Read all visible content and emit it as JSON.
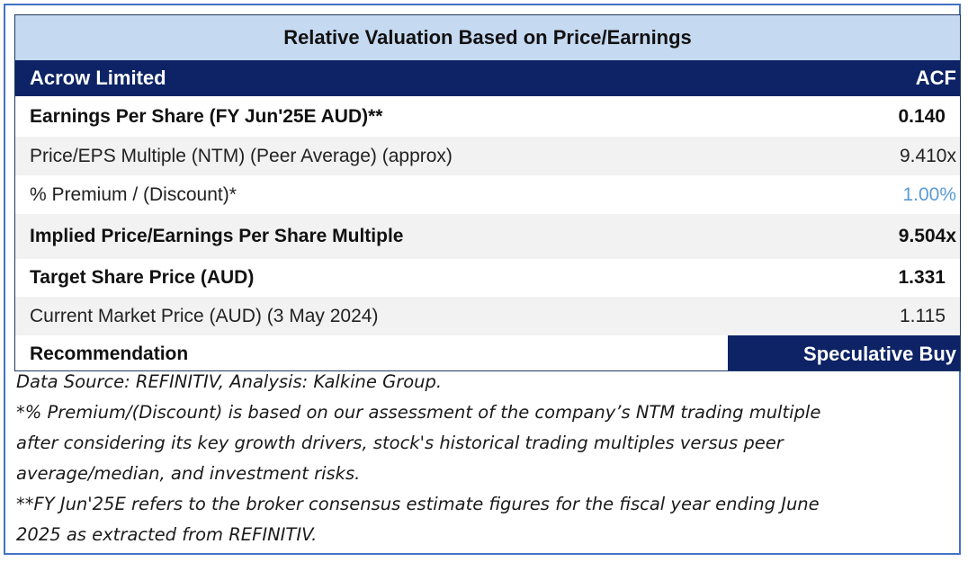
{
  "table": {
    "title": "Relative Valuation Based on Price/Earnings",
    "company": {
      "name": "Acrow Limited",
      "ticker": "ACF"
    },
    "rows": [
      {
        "label": "Earnings Per Share (FY Jun'25E AUD)**",
        "value": "0.140"
      },
      {
        "label": "Price/EPS Multiple (NTM) (Peer Average) (approx)",
        "value": "9.410x"
      },
      {
        "label": "% Premium / (Discount)*",
        "value": "1.00%"
      },
      {
        "label": "Implied Price/Earnings Per Share Multiple",
        "value": "9.504x"
      },
      {
        "label": "Target Share Price (AUD)",
        "value": "1.331"
      },
      {
        "label": "Current Market Price (AUD) (3 May 2024)",
        "value": "1.115"
      }
    ],
    "recommendation": {
      "label": "Recommendation",
      "value": "Speculative Buy"
    },
    "colors": {
      "header_blue": "#0d2366",
      "title_bg": "#c5d9f1",
      "premium_text": "#5b9bd5"
    }
  },
  "notes": {
    "source": "Data Source: REFINITIV, Analysis: Kalkine Group.",
    "premium_note_1": "*% Premium/(Discount) is based on our assessment of the company’s NTM trading multiple",
    "premium_note_2": "after considering its key growth drivers, stock's historical trading multiples versus peer",
    "premium_note_3": "average/median, and investment risks.",
    "fy_note_1": "**FY Jun'25E refers to the broker consensus estimate figures for the fiscal year ending June",
    "fy_note_2": "2025 as extracted from REFINITIV."
  }
}
